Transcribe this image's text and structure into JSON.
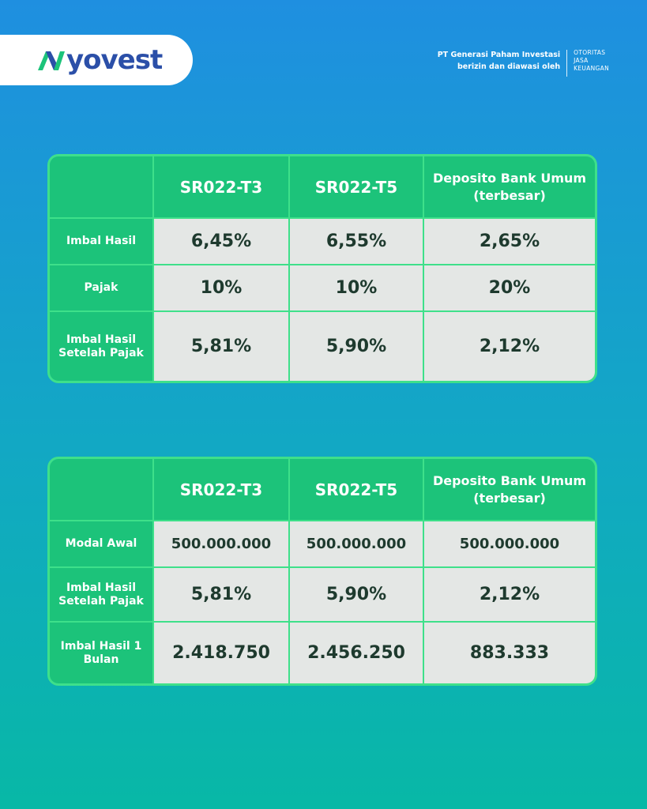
{
  "brand": {
    "logo_text": "yovest",
    "company_line1": "PT Generasi Paham Investasi",
    "company_line2": "berizin dan diawasi oleh",
    "ojk_line1": "OTORITAS",
    "ojk_line2": "JASA",
    "ojk_line3": "KEUANGAN",
    "accent_color": "#1cc37a",
    "logo_color": "#2b4fa8"
  },
  "table1": {
    "headers": [
      "",
      "SR022-T3",
      "SR022-T5",
      "Deposito Bank Umum (terbesar)"
    ],
    "rows": [
      {
        "label": "Imbal Hasil",
        "values": [
          "6,45%",
          "6,55%",
          "2,65%"
        ]
      },
      {
        "label": "Pajak",
        "values": [
          "10%",
          "10%",
          "20%"
        ]
      },
      {
        "label": "Imbal Hasil Setelah Pajak",
        "values": [
          "5,81%",
          "5,90%",
          "2,12%"
        ]
      }
    ]
  },
  "table2": {
    "headers": [
      "",
      "SR022-T3",
      "SR022-T5",
      "Deposito Bank Umum (terbesar)"
    ],
    "rows": [
      {
        "label": "Modal Awal",
        "values": [
          "500.000.000",
          "500.000.000",
          "500.000.000"
        ]
      },
      {
        "label": "Imbal Hasil Setelah Pajak",
        "values": [
          "5,81%",
          "5,90%",
          "2,12%"
        ]
      },
      {
        "label": "Imbal Hasil 1 Bulan",
        "values": [
          "2.418.750",
          "2.456.250",
          "883.333"
        ]
      }
    ]
  }
}
